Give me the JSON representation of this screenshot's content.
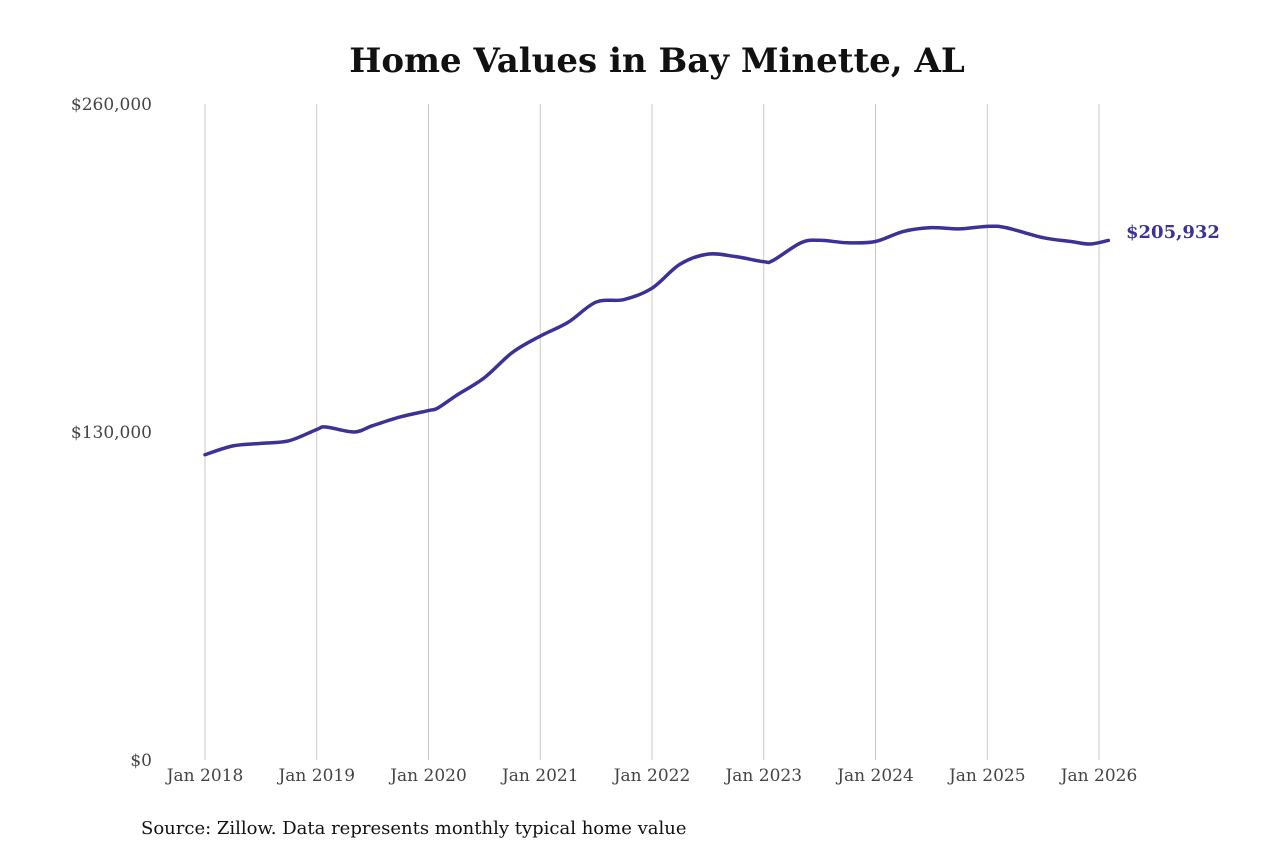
{
  "chart_data": {
    "type": "line",
    "title": "Home Values in Bay Minette, AL",
    "source": "Source: Zillow. Data represents monthly typical home value",
    "ylim": [
      0,
      260000
    ],
    "y_ticks": [
      {
        "value": 0,
        "label": "$0"
      },
      {
        "value": 130000,
        "label": "$130,000"
      },
      {
        "value": 260000,
        "label": "$260,000"
      }
    ],
    "x_range": [
      "2018-01",
      "2026-01"
    ],
    "x_ticks": [
      "Jan 2018",
      "Jan 2019",
      "Jan 2020",
      "Jan 2021",
      "Jan 2022",
      "Jan 2023",
      "Jan 2024",
      "Jan 2025",
      "Jan 2026"
    ],
    "vertical_grid": true,
    "line_color": "#3b3197",
    "end_label": "$205,932",
    "series": [
      {
        "points": [
          {
            "x": "2018-01",
            "y": 121000
          },
          {
            "x": "2018-04",
            "y": 124500
          },
          {
            "x": "2018-07",
            "y": 125500
          },
          {
            "x": "2018-10",
            "y": 126500
          },
          {
            "x": "2019-01",
            "y": 131000
          },
          {
            "x": "2019-02",
            "y": 132000
          },
          {
            "x": "2019-05",
            "y": 130000
          },
          {
            "x": "2019-07",
            "y": 132500
          },
          {
            "x": "2019-10",
            "y": 136000
          },
          {
            "x": "2020-01",
            "y": 138500
          },
          {
            "x": "2020-02",
            "y": 139500
          },
          {
            "x": "2020-04",
            "y": 144500
          },
          {
            "x": "2020-07",
            "y": 151500
          },
          {
            "x": "2020-10",
            "y": 161500
          },
          {
            "x": "2021-01",
            "y": 168000
          },
          {
            "x": "2021-04",
            "y": 173500
          },
          {
            "x": "2021-07",
            "y": 181500
          },
          {
            "x": "2021-10",
            "y": 182500
          },
          {
            "x": "2022-01",
            "y": 187000
          },
          {
            "x": "2022-04",
            "y": 196500
          },
          {
            "x": "2022-07",
            "y": 200500
          },
          {
            "x": "2022-10",
            "y": 199500
          },
          {
            "x": "2023-01",
            "y": 197500
          },
          {
            "x": "2023-02",
            "y": 198000
          },
          {
            "x": "2023-05",
            "y": 205000
          },
          {
            "x": "2023-07",
            "y": 206000
          },
          {
            "x": "2023-10",
            "y": 205000
          },
          {
            "x": "2024-01",
            "y": 205500
          },
          {
            "x": "2024-04",
            "y": 209500
          },
          {
            "x": "2024-07",
            "y": 211000
          },
          {
            "x": "2024-10",
            "y": 210500
          },
          {
            "x": "2025-01",
            "y": 211500
          },
          {
            "x": "2025-03",
            "y": 211000
          },
          {
            "x": "2025-07",
            "y": 207000
          },
          {
            "x": "2025-10",
            "y": 205500
          },
          {
            "x": "2025-12",
            "y": 204500
          },
          {
            "x": "2026-02",
            "y": 205932
          }
        ]
      }
    ]
  }
}
